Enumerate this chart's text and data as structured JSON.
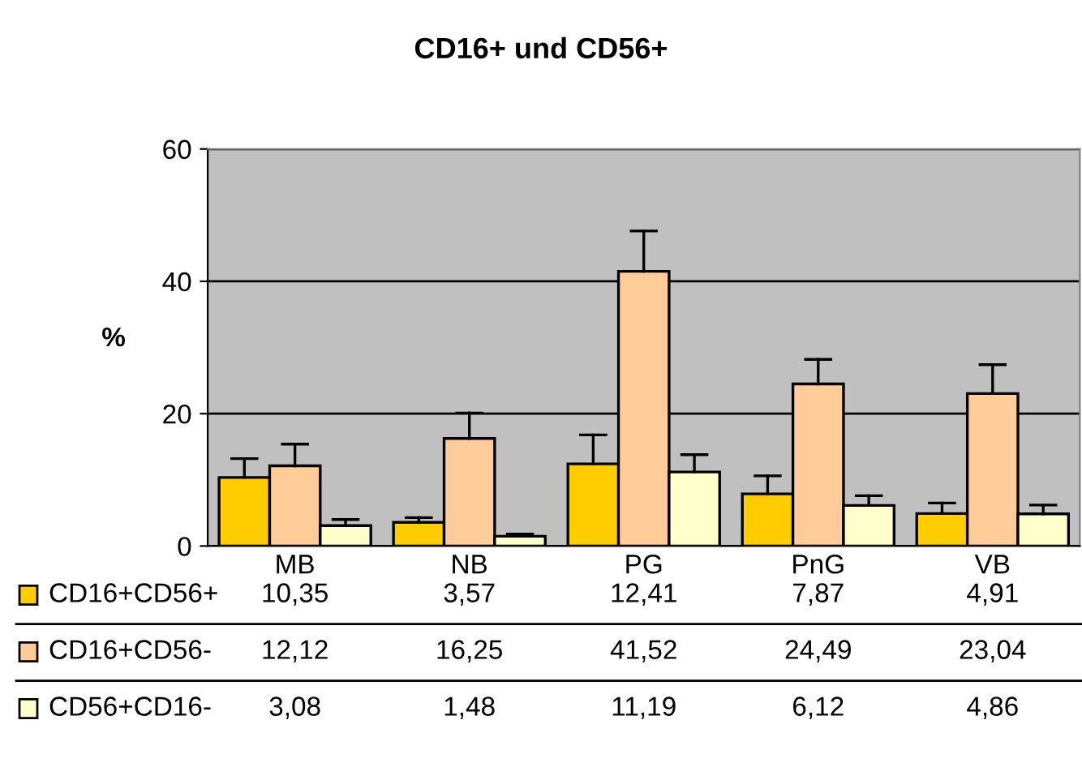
{
  "chart_data": {
    "type": "bar",
    "title": "CD16+ und CD56+",
    "ylabel": "%",
    "categories": [
      "MB",
      "NB",
      "PG",
      "PnG",
      "VB"
    ],
    "series": [
      {
        "name": "CD16+CD56+",
        "color": "#ffcc00",
        "values": [
          10.35,
          3.57,
          12.41,
          7.87,
          4.91
        ],
        "value_labels": [
          "10,35",
          "3,57",
          "12,41",
          "7,87",
          "4,91"
        ],
        "errors": [
          [
            10.35,
            13.2
          ],
          [
            3.57,
            4.3
          ],
          [
            12.41,
            16.8
          ],
          [
            7.87,
            10.6
          ],
          [
            4.91,
            6.5
          ]
        ]
      },
      {
        "name": "CD16+CD56-",
        "color": "#ffcc99",
        "values": [
          12.12,
          16.25,
          41.52,
          24.49,
          23.04
        ],
        "value_labels": [
          "12,12",
          "16,25",
          "41,52",
          "24,49",
          "23,04"
        ],
        "errors": [
          [
            12.12,
            15.4
          ],
          [
            16.25,
            20.1
          ],
          [
            41.52,
            47.6
          ],
          [
            24.49,
            28.2
          ],
          [
            23.04,
            27.4
          ]
        ]
      },
      {
        "name": "CD56+CD16-",
        "color": "#ffffcc",
        "values": [
          3.08,
          1.48,
          11.19,
          6.12,
          4.86
        ],
        "value_labels": [
          "3,08",
          "1,48",
          "11,19",
          "6,12",
          "4,86"
        ],
        "errors": [
          [
            3.08,
            4.0
          ],
          [
            1.48,
            1.8
          ],
          [
            11.19,
            13.8
          ],
          [
            6.12,
            7.6
          ],
          [
            4.86,
            6.2
          ]
        ]
      }
    ],
    "ylim": [
      0,
      60
    ],
    "yticks": [
      0,
      20,
      40,
      60
    ],
    "grid": "y",
    "legend": "bottom"
  }
}
